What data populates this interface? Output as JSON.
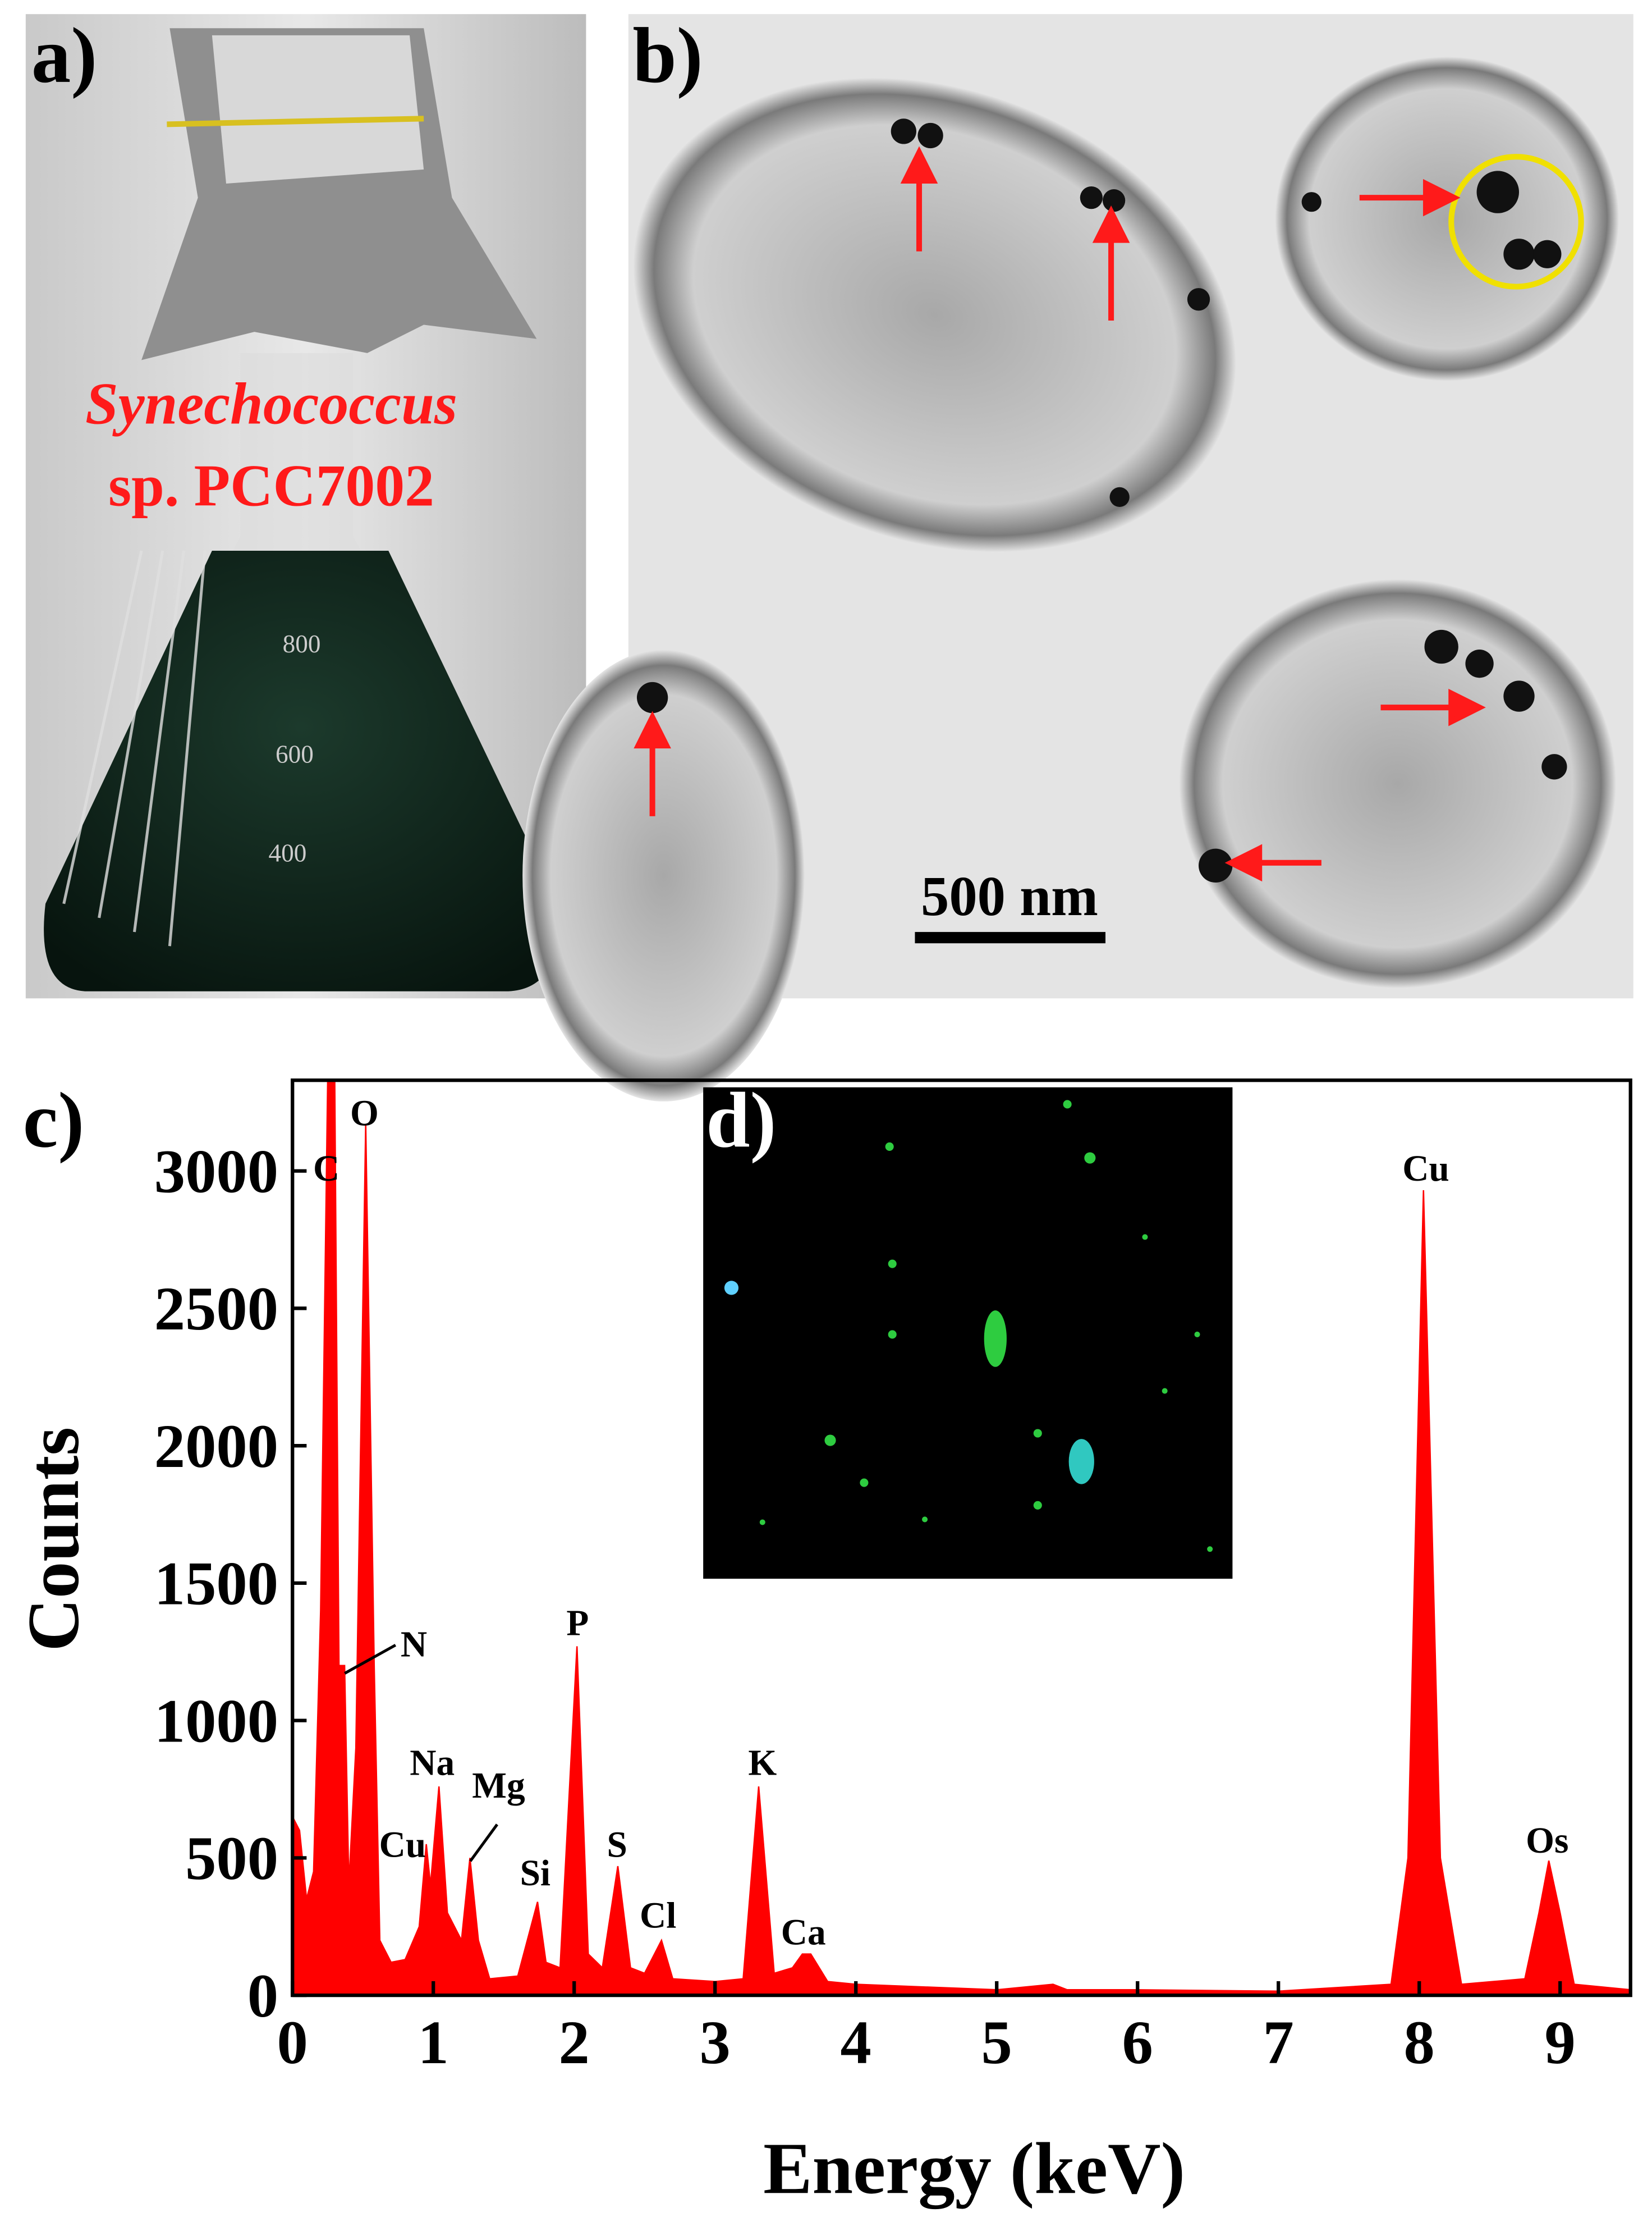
{
  "panel_a": {
    "label": "a)",
    "caption": [
      "Synechococcus",
      "sp. PCC7002"
    ],
    "flask_marks": [
      "800",
      "600",
      "400"
    ]
  },
  "panel_b": {
    "label": "b)",
    "scale_bar": "500 nm"
  },
  "panel_d": {
    "label": "d)"
  },
  "chart_data": {
    "type": "area",
    "label": "c)",
    "x_label": "Energy (keV)",
    "y_label": "Counts",
    "color": "#ff0000",
    "x": [
      0,
      0.05,
      0.1,
      0.15,
      0.2,
      0.25,
      0.3,
      0.33,
      0.37,
      0.4,
      0.45,
      0.52,
      0.58,
      0.62,
      0.7,
      0.8,
      0.9,
      0.95,
      0.98,
      1.04,
      1.1,
      1.2,
      1.26,
      1.32,
      1.4,
      1.6,
      1.74,
      1.8,
      1.9,
      2.02,
      2.1,
      2.2,
      2.31,
      2.4,
      2.5,
      2.62,
      2.7,
      3.0,
      3.2,
      3.31,
      3.42,
      3.55,
      3.62,
      3.68,
      3.8,
      4.0,
      5.0,
      5.4,
      5.5,
      6.0,
      7.0,
      7.8,
      7.92,
      8.03,
      8.15,
      8.3,
      8.75,
      8.85,
      8.92,
      9.0,
      9.1,
      9.5
    ],
    "values": [
      650,
      600,
      350,
      450,
      1400,
      3330,
      3330,
      1200,
      1200,
      400,
      900,
      3170,
      1200,
      200,
      120,
      130,
      250,
      550,
      400,
      760,
      300,
      200,
      500,
      200,
      60,
      70,
      340,
      120,
      100,
      1270,
      150,
      100,
      470,
      100,
      80,
      200,
      60,
      50,
      60,
      760,
      80,
      100,
      150,
      150,
      50,
      40,
      20,
      40,
      20,
      20,
      15,
      40,
      500,
      2930,
      500,
      40,
      60,
      300,
      490,
      300,
      40,
      20
    ],
    "xlim": [
      0,
      9.5
    ],
    "ylim": [
      0,
      3330
    ],
    "xticks": [
      0,
      1,
      2,
      3,
      4,
      5,
      6,
      7,
      8,
      9
    ],
    "yticks": [
      0,
      500,
      1000,
      1500,
      2000,
      2500,
      3000
    ],
    "annotations": [
      "C",
      "O",
      "N",
      "Na",
      "Cu",
      "Mg",
      "Si",
      "P",
      "S",
      "Cl",
      "K",
      "Ca",
      "Cu",
      "Os"
    ]
  }
}
